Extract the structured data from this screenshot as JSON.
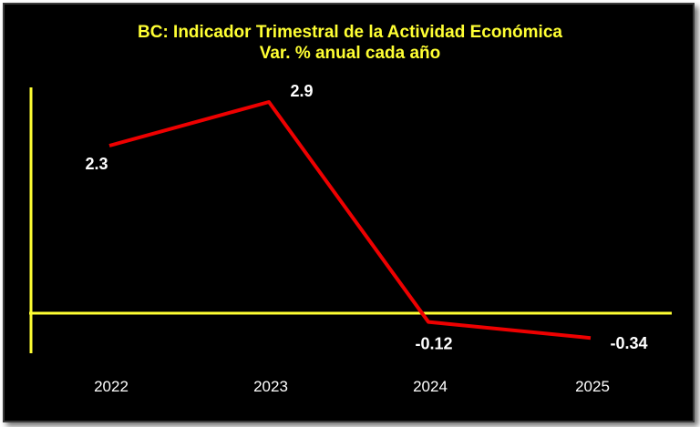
{
  "chart_data": {
    "type": "line",
    "title": "BC: Indicador Trimestral de la Actividad Económica",
    "subtitle": "Var. % anual cada año",
    "categories": [
      "2022",
      "2023",
      "2024",
      "2025"
    ],
    "series": [
      {
        "name": "Var. % anual",
        "values": [
          2.3,
          2.9,
          -0.12,
          -0.34
        ],
        "labels": [
          "2.3",
          "2.9",
          "-0.12",
          "-0.34"
        ]
      }
    ],
    "xlabel": "",
    "ylabel": "",
    "ylim": [
      -0.55,
      3.1
    ],
    "grid": false,
    "legend": "none",
    "colors": {
      "background": "#000000",
      "axis": "#ffff33",
      "line": "#ee0000",
      "title": "#ffff33",
      "text": "#ffffff"
    }
  }
}
